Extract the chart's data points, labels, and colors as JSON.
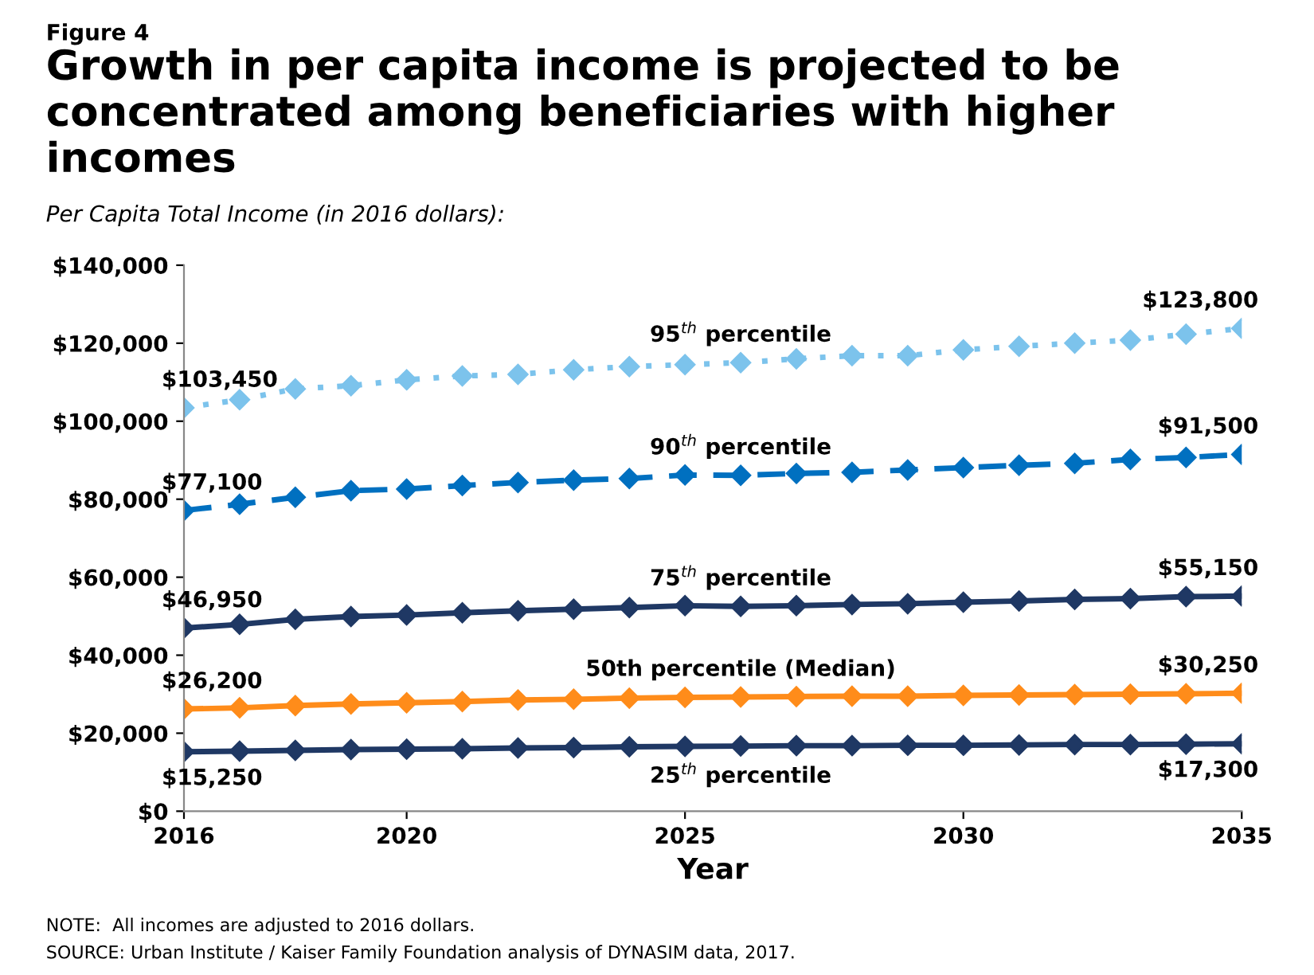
{
  "chart_data": {
    "type": "line",
    "title": "Growth in per capita income is projected to be concentrated among beneficiaries with higher incomes",
    "subtitle": "Per Capita Total Income (in 2016 dollars):",
    "xlabel": "Year",
    "annotations": [
      "Figure 4",
      "NOTE:  All incomes are adjusted to 2016 dollars.",
      "SOURCE: Urban Institute / Kaiser Family Foundation analysis of DYNASIM data, 2017."
    ],
    "x": [
      2016,
      2017,
      2018,
      2019,
      2020,
      2021,
      2022,
      2023,
      2024,
      2025,
      2026,
      2027,
      2028,
      2029,
      2030,
      2031,
      2032,
      2033,
      2034,
      2035
    ],
    "series": [
      {
        "name": "95$^{th}$ percentile",
        "color": "#7cc3ec",
        "line_style": "dotted",
        "values": [
          103450,
          105500,
          108300,
          109100,
          110600,
          111600,
          112000,
          113200,
          114000,
          114500,
          115000,
          116000,
          116800,
          116800,
          118300,
          119200,
          120000,
          120800,
          122300,
          123800
        ],
        "value_labels": [
          "$103,450",
          null,
          null,
          null,
          null,
          null,
          null,
          null,
          null,
          null,
          null,
          null,
          null,
          null,
          null,
          null,
          null,
          null,
          null,
          "$123,800"
        ]
      },
      {
        "name": "90$^{th}$ percentile",
        "color": "#0070c0",
        "line_style": "dashed",
        "values": [
          77100,
          78700,
          80500,
          82200,
          82600,
          83500,
          84300,
          84900,
          85300,
          86200,
          86100,
          86600,
          86900,
          87500,
          88100,
          88700,
          89200,
          90200,
          90700,
          91500
        ],
        "value_labels": [
          "$77,100",
          null,
          null,
          null,
          null,
          null,
          null,
          null,
          null,
          null,
          null,
          null,
          null,
          null,
          null,
          null,
          null,
          null,
          null,
          "$91,500"
        ]
      },
      {
        "name": "75$^{th}$ percentile",
        "color": "#1f3864",
        "line_style": "solid",
        "values": [
          46950,
          47900,
          49200,
          49900,
          50300,
          50900,
          51400,
          51800,
          52200,
          52700,
          52500,
          52700,
          53000,
          53200,
          53600,
          53900,
          54300,
          54500,
          55000,
          55150
        ],
        "value_labels": [
          "$46,950",
          null,
          null,
          null,
          null,
          null,
          null,
          null,
          null,
          null,
          null,
          null,
          null,
          null,
          null,
          null,
          null,
          null,
          null,
          "$55,150"
        ]
      },
      {
        "name": "50th percentile (Median)",
        "color": "#ff8c1a",
        "line_style": "solid",
        "values": [
          26200,
          26500,
          27100,
          27500,
          27800,
          28100,
          28500,
          28700,
          29000,
          29200,
          29300,
          29400,
          29500,
          29500,
          29700,
          29800,
          29900,
          30000,
          30100,
          30250
        ],
        "value_labels": [
          "$26,200",
          null,
          null,
          null,
          null,
          null,
          null,
          null,
          null,
          null,
          null,
          null,
          null,
          null,
          null,
          null,
          null,
          null,
          null,
          "$30,250"
        ]
      },
      {
        "name": "25$^{th}$ percentile",
        "color": "#1f3864",
        "line_style": "solid",
        "values": [
          15250,
          15400,
          15600,
          15800,
          15900,
          16000,
          16200,
          16300,
          16500,
          16600,
          16700,
          16800,
          16800,
          16900,
          16900,
          17000,
          17100,
          17100,
          17200,
          17300
        ],
        "value_labels": [
          "$15,250",
          null,
          null,
          null,
          null,
          null,
          null,
          null,
          null,
          null,
          null,
          null,
          null,
          null,
          null,
          null,
          null,
          null,
          null,
          "$17,300"
        ]
      }
    ],
    "marker": "diamond",
    "xlim": [
      2016,
      2035
    ],
    "xticks": [
      2016,
      2020,
      2025,
      2030,
      2035
    ],
    "ylim": [
      0,
      140000
    ],
    "yticks": [
      {
        "value": 0,
        "label": "$0"
      },
      {
        "value": 20000,
        "label": "$20,000"
      },
      {
        "value": 40000,
        "label": "$40,000"
      },
      {
        "value": 60000,
        "label": "$60,000"
      },
      {
        "value": 80000,
        "label": "$80,000"
      },
      {
        "value": 100000,
        "label": "$100,000"
      },
      {
        "value": 120000,
        "label": "$120,000"
      },
      {
        "value": 140000,
        "label": "$140,000"
      }
    ],
    "grid": false,
    "legend": false
  }
}
